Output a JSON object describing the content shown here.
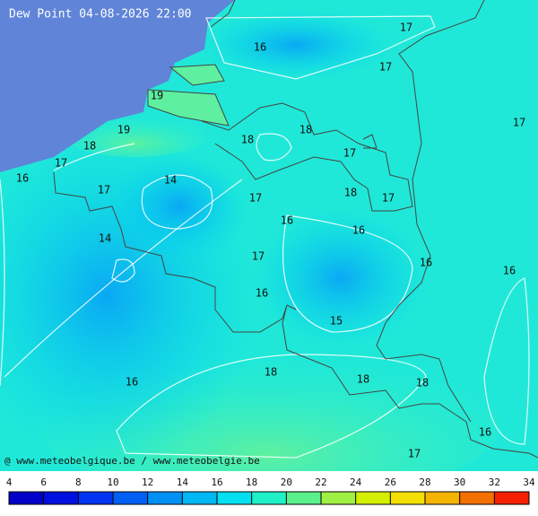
{
  "title": "Dew Point 04-08-2026 22:00",
  "credit": "@ www.meteobelgique.be / www.meteobelgie.be",
  "contour_labels": [
    "17",
    "16",
    "17",
    "19",
    "17",
    "19",
    "18",
    "18",
    "18",
    "17",
    "17",
    "16",
    "14",
    "17",
    "18",
    "17",
    "17",
    "16",
    "16",
    "14",
    "17",
    "16",
    "16",
    "16",
    "15",
    "18",
    "18",
    "18",
    "16",
    "16",
    "17"
  ],
  "colorbar": {
    "ticks": [
      4,
      6,
      8,
      10,
      12,
      14,
      16,
      18,
      20,
      22,
      24,
      26,
      28,
      30,
      32,
      34
    ],
    "colors": [
      "#0000c8",
      "#0010e0",
      "#0034f0",
      "#0060f4",
      "#0090f4",
      "#00b8f4",
      "#00e0f0",
      "#20f0c8",
      "#5cf08c",
      "#a0f044",
      "#d4f000",
      "#f4e000",
      "#f4b400",
      "#f47000",
      "#f42000"
    ]
  }
}
